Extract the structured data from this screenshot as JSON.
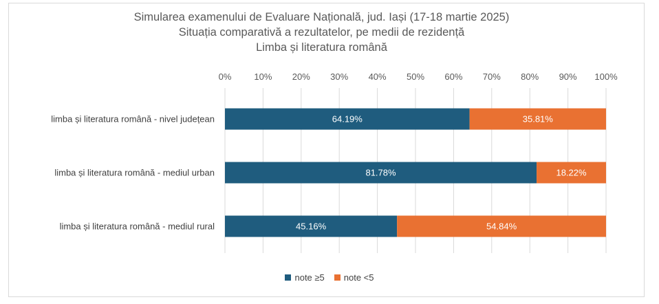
{
  "chart_data": {
    "type": "bar",
    "orientation": "horizontal",
    "stacked": true,
    "title_lines": [
      "Simularea examenului de Evaluare Națională, jud. Iași (17-18 martie 2025)",
      "Situația comparativă a rezultatelor, pe medii de rezidență",
      "Limba și literatura română"
    ],
    "categories": [
      "limba și literatura română - nivel județean",
      "limba și literatura română - mediul urban",
      "limba și literatura română - mediul rural"
    ],
    "series": [
      {
        "name": "note ≥5",
        "color": "#1f5c7e",
        "values": [
          64.19,
          81.78,
          45.16
        ],
        "labels": [
          "64.19%",
          "81.78%",
          "45.16%"
        ]
      },
      {
        "name": "note <5",
        "color": "#e97132",
        "values": [
          35.81,
          18.22,
          54.84
        ],
        "labels": [
          "35.81%",
          "18.22%",
          "54.84%"
        ]
      }
    ],
    "x_ticks": [
      "0%",
      "10%",
      "20%",
      "30%",
      "40%",
      "50%",
      "60%",
      "70%",
      "80%",
      "90%",
      "100%"
    ],
    "xlim": [
      0,
      100
    ],
    "grid": true,
    "axis_position": "top",
    "legend_position": "bottom"
  }
}
